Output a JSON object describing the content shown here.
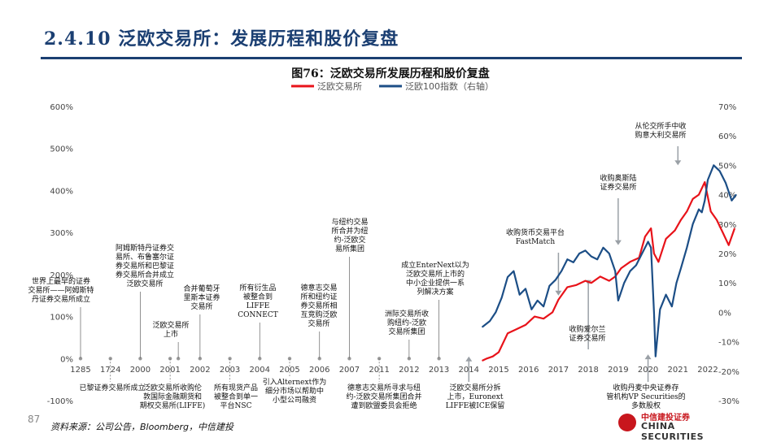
{
  "header": {
    "section_title": "2.4.10 泛欧交易所：发展历程和股价复盘",
    "figure_title": "图76：泛欧交易所发展历程和股价复盘"
  },
  "footer": {
    "source": "资料来源：公司公告，Bloomberg，中信建投",
    "page_number": "87",
    "logo_cn": "中信建投证券",
    "logo_en": "CHINA SECURITIES"
  },
  "chart_data": {
    "type": "line",
    "legend_position": "top",
    "colors": {
      "euronext": "#e8131a",
      "euronext100": "#1c4e86"
    },
    "left_axis": {
      "ticks": [
        "600%",
        "500%",
        "400%",
        "300%",
        "200%",
        "100%",
        "0%",
        "-100%"
      ],
      "ylim": [
        -100,
        600
      ]
    },
    "right_axis": {
      "ticks": [
        "70%",
        "60%",
        "50%",
        "40%",
        "30%",
        "20%",
        "10%",
        "0%",
        "-10%",
        "-20%",
        "-30%"
      ],
      "ylim": [
        -30,
        70
      ]
    },
    "x_ticks": [
      "1285",
      "1724",
      "2000",
      "2001",
      "2002",
      "2003",
      "2004",
      "2005",
      "2006",
      "2007",
      "2011",
      "2012",
      "2013",
      "2014",
      "2015",
      "2016",
      "2017",
      "2018",
      "2019",
      "2020",
      "2021",
      "2022"
    ],
    "series": [
      {
        "name": "泛欧交易所",
        "axis": "left",
        "x": [
          2014.45,
          2014.6,
          2014.8,
          2015.0,
          2015.3,
          2015.6,
          2015.9,
          2016.2,
          2016.5,
          2016.8,
          2017.0,
          2017.3,
          2017.6,
          2017.9,
          2018.1,
          2018.4,
          2018.7,
          2018.9,
          2019.1,
          2019.4,
          2019.7,
          2019.9,
          2020.1,
          2020.2,
          2020.35,
          2020.6,
          2020.9,
          2021.1,
          2021.3,
          2021.5,
          2021.7,
          2021.9,
          2022.1,
          2022.3,
          2022.5,
          2022.7,
          2022.9
        ],
        "values": [
          -5,
          0,
          5,
          15,
          60,
          70,
          80,
          100,
          95,
          110,
          140,
          170,
          175,
          185,
          180,
          195,
          185,
          195,
          215,
          230,
          240,
          290,
          310,
          250,
          230,
          285,
          305,
          330,
          350,
          380,
          390,
          420,
          350,
          330,
          300,
          270,
          310
        ]
      },
      {
        "name": "泛欧100指数（右轴）",
        "axis": "right",
        "x": [
          2014.45,
          2014.7,
          2014.9,
          2015.1,
          2015.3,
          2015.5,
          2015.7,
          2015.9,
          2016.1,
          2016.3,
          2016.5,
          2016.7,
          2016.9,
          2017.1,
          2017.3,
          2017.5,
          2017.7,
          2017.9,
          2018.1,
          2018.3,
          2018.5,
          2018.7,
          2018.9,
          2019.0,
          2019.2,
          2019.4,
          2019.6,
          2019.8,
          2020.0,
          2020.1,
          2020.2,
          2020.25,
          2020.4,
          2020.6,
          2020.8,
          2020.95,
          2021.1,
          2021.3,
          2021.5,
          2021.7,
          2021.8,
          2021.9,
          2022.0,
          2022.2,
          2022.4,
          2022.6,
          2022.8,
          2022.95
        ],
        "values": [
          -5,
          -3,
          0,
          5,
          12,
          14,
          6,
          8,
          1,
          4,
          2,
          9,
          11,
          14,
          18,
          17,
          20,
          21,
          19,
          18,
          22,
          20,
          14,
          4,
          10,
          14,
          16,
          20,
          24,
          22,
          0,
          -15,
          1,
          6,
          2,
          10,
          15,
          22,
          30,
          35,
          34,
          38,
          45,
          50,
          48,
          44,
          38,
          40
        ]
      }
    ],
    "annotations": [
      {
        "text": [
          "世界上最早的证券",
          "交易所——阿姆斯特",
          "丹证券交易所成立"
        ],
        "x": "1285"
      },
      {
        "text": [
          "已黎证券交易所成立"
        ],
        "x": "1724"
      },
      {
        "text": [
          "阿姆斯特丹证券交",
          "易所、布鲁塞尔证",
          "券交易所和巴黎证",
          "券交易所合并成立",
          "泛欧交易所"
        ],
        "x": "2000"
      },
      {
        "text": [
          "泛欧交易所收购伦",
          "敦国际金融期货和",
          "期权交易所(LIFFE)"
        ],
        "x": "2001"
      },
      {
        "text": [
          "泛欧交易所",
          "上市"
        ],
        "x": "2001"
      },
      {
        "text": [
          "合并葡萄牙",
          "里斯本证券",
          "交易所"
        ],
        "x": "2002"
      },
      {
        "text": [
          "所有现货产品",
          "被整合到单一",
          "平台NSC"
        ],
        "x": "2003"
      },
      {
        "text": [
          "所有衍生品",
          "被整合到",
          "LIFFE",
          "CONNECT"
        ],
        "x": "2004"
      },
      {
        "text": [
          "引入Alternext作为",
          "细分市场以帮助中",
          "小型公司融资"
        ],
        "x": "2005"
      },
      {
        "text": [
          "德意志交易",
          "所和纽约证",
          "券交易所相",
          "互竞购泛欧",
          "交易所"
        ],
        "x": "2006"
      },
      {
        "text": [
          "与纽约交易",
          "所合并为纽",
          "约-泛欧交",
          "易所集团"
        ],
        "x": "2007"
      },
      {
        "text": [
          "德意志交易所寻求与纽",
          "约-泛欧交易所集团合并",
          "遭到欧盟委员会拒绝"
        ],
        "x": "2011"
      },
      {
        "text": [
          "洲际交易所收",
          "购纽约-泛欧",
          "交易所集团"
        ],
        "x": "2012"
      },
      {
        "text": [
          "成立EnterNext以为",
          "泛欧交易所上市的",
          "中小企业提供一系",
          "列解决方案"
        ],
        "x": "2013"
      },
      {
        "text": [
          "泛欧交易所分拆",
          "上市，Euronext",
          "LIFFE被ICE保留"
        ],
        "x": "2014"
      },
      {
        "text": [
          "收购货币交易平台",
          "FastMatch"
        ],
        "x": "2017"
      },
      {
        "text": [
          "收购爱尔兰",
          "证券交易所"
        ],
        "x": "2018"
      },
      {
        "text": [
          "收购奥斯陆",
          "证券交易所"
        ],
        "x": "2019"
      },
      {
        "text": [
          "收购丹麦中央证券存",
          "管机构VP Securities的",
          "多数股权"
        ],
        "x": "2020"
      },
      {
        "text": [
          "从伦交所手中收",
          "购意大利交易所"
        ],
        "x": "2021"
      }
    ]
  }
}
